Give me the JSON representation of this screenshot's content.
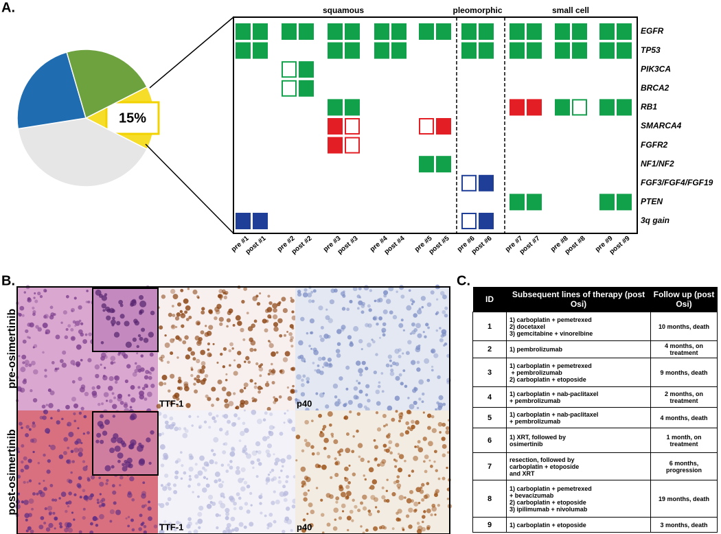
{
  "panel_labels": [
    "A.",
    "B.",
    "C."
  ],
  "chart_data": {
    "type": "pie",
    "values": [
      15,
      40,
      23,
      22
    ],
    "colors": [
      "#f5dd2a",
      "#e6e6e6",
      "#1f6cb0",
      "#6ea23f"
    ],
    "value_labels": [
      "15%",
      null,
      null,
      null
    ]
  },
  "oncoprint": {
    "groups": [
      {
        "name": "squamous",
        "patients": 5
      },
      {
        "name": "pleomorphic",
        "patients": 1
      },
      {
        "name": "small cell",
        "patients": 3
      }
    ],
    "genes": [
      "EGFR",
      "TP53",
      "PIK3CA",
      "BRCA2",
      "RB1",
      "SMARCA4",
      "FGFR2",
      "NF1/NF2",
      "FGF3/FGF4/FGF19",
      "PTEN",
      "3q gain"
    ],
    "samples": [
      "pre #1",
      "post #1",
      "pre #2",
      "post #2",
      "pre #3",
      "post #3",
      "pre #4",
      "post #4",
      "pre #5",
      "post #5",
      "pre #6",
      "post #6",
      "pre #7",
      "post #7",
      "pre #8",
      "post #8",
      "pre #9",
      "post #9"
    ],
    "cells": [
      [
        {
          "color": "#12a14b",
          "filled": true
        },
        {
          "color": "#12a14b",
          "filled": true
        },
        {
          "color": "#12a14b",
          "filled": true
        },
        {
          "color": "#12a14b",
          "filled": true
        },
        {
          "color": "#12a14b",
          "filled": true
        },
        {
          "color": "#12a14b",
          "filled": true
        },
        {
          "color": "#12a14b",
          "filled": true
        },
        {
          "color": "#12a14b",
          "filled": true
        },
        {
          "color": "#12a14b",
          "filled": true
        },
        {
          "color": "#12a14b",
          "filled": true
        },
        {
          "color": "#12a14b",
          "filled": true
        },
        {
          "color": "#12a14b",
          "filled": true
        },
        {
          "color": "#12a14b",
          "filled": true
        },
        {
          "color": "#12a14b",
          "filled": true
        },
        {
          "color": "#12a14b",
          "filled": true
        },
        {
          "color": "#12a14b",
          "filled": true
        },
        {
          "color": "#12a14b",
          "filled": true
        },
        {
          "color": "#12a14b",
          "filled": true
        }
      ],
      [
        {
          "color": "#12a14b",
          "filled": true
        },
        {
          "color": "#12a14b",
          "filled": true
        },
        null,
        null,
        {
          "color": "#12a14b",
          "filled": true
        },
        {
          "color": "#12a14b",
          "filled": true
        },
        {
          "color": "#12a14b",
          "filled": true
        },
        {
          "color": "#12a14b",
          "filled": true
        },
        null,
        null,
        {
          "color": "#12a14b",
          "filled": true
        },
        {
          "color": "#12a14b",
          "filled": true
        },
        {
          "color": "#12a14b",
          "filled": true
        },
        {
          "color": "#12a14b",
          "filled": true
        },
        {
          "color": "#12a14b",
          "filled": true
        },
        {
          "color": "#12a14b",
          "filled": true
        },
        {
          "color": "#12a14b",
          "filled": true
        },
        {
          "color": "#12a14b",
          "filled": true
        }
      ],
      [
        null,
        null,
        {
          "color": "#12a14b",
          "filled": false
        },
        {
          "color": "#12a14b",
          "filled": true
        },
        null,
        null,
        null,
        null,
        null,
        null,
        null,
        null,
        null,
        null,
        null,
        null,
        null,
        null
      ],
      [
        null,
        null,
        {
          "color": "#12a14b",
          "filled": false
        },
        {
          "color": "#12a14b",
          "filled": true
        },
        null,
        null,
        null,
        null,
        null,
        null,
        null,
        null,
        null,
        null,
        null,
        null,
        null,
        null
      ],
      [
        null,
        null,
        null,
        null,
        {
          "color": "#12a14b",
          "filled": true
        },
        {
          "color": "#12a14b",
          "filled": true
        },
        null,
        null,
        null,
        null,
        null,
        null,
        {
          "color": "#e31e24",
          "filled": true
        },
        {
          "color": "#e31e24",
          "filled": true
        },
        {
          "color": "#12a14b",
          "filled": true
        },
        {
          "color": "#12a14b",
          "filled": false
        },
        {
          "color": "#12a14b",
          "filled": true
        },
        {
          "color": "#12a14b",
          "filled": true
        }
      ],
      [
        null,
        null,
        null,
        null,
        {
          "color": "#e31e24",
          "filled": true
        },
        {
          "color": "#e31e24",
          "filled": false
        },
        null,
        null,
        {
          "color": "#e31e24",
          "filled": false
        },
        {
          "color": "#e31e24",
          "filled": true
        },
        null,
        null,
        null,
        null,
        null,
        null,
        null,
        null
      ],
      [
        null,
        null,
        null,
        null,
        {
          "color": "#e31e24",
          "filled": true
        },
        {
          "color": "#e31e24",
          "filled": false
        },
        null,
        null,
        null,
        null,
        null,
        null,
        null,
        null,
        null,
        null,
        null,
        null
      ],
      [
        null,
        null,
        null,
        null,
        null,
        null,
        null,
        null,
        {
          "color": "#12a14b",
          "filled": true
        },
        {
          "color": "#12a14b",
          "filled": true
        },
        null,
        null,
        null,
        null,
        null,
        null,
        null,
        null
      ],
      [
        null,
        null,
        null,
        null,
        null,
        null,
        null,
        null,
        null,
        null,
        {
          "color": "#1f3e97",
          "filled": false
        },
        {
          "color": "#1f3e97",
          "filled": true
        },
        null,
        null,
        null,
        null,
        null,
        null
      ],
      [
        null,
        null,
        null,
        null,
        null,
        null,
        null,
        null,
        null,
        null,
        null,
        null,
        {
          "color": "#12a14b",
          "filled": true
        },
        {
          "color": "#12a14b",
          "filled": true
        },
        null,
        null,
        {
          "color": "#12a14b",
          "filled": true
        },
        {
          "color": "#12a14b",
          "filled": true
        }
      ],
      [
        {
          "color": "#1f3e97",
          "filled": true
        },
        {
          "color": "#1f3e97",
          "filled": true
        },
        null,
        null,
        null,
        null,
        null,
        null,
        null,
        null,
        {
          "color": "#1f3e97",
          "filled": false
        },
        {
          "color": "#1f3e97",
          "filled": true
        },
        null,
        null,
        null,
        null,
        null,
        null
      ]
    ]
  },
  "histology": {
    "rows": [
      "pre-osimertinib",
      "post-osimertinib"
    ],
    "stains": [
      "TTF-1",
      "p40"
    ]
  },
  "table": {
    "header": [
      "ID",
      "Subsequent lines of therapy (post Osi)",
      "Follow up (post Osi)"
    ],
    "rows": [
      [
        "1",
        [
          "1) carboplatin + pemetrexed",
          "2) docetaxel",
          "3) gemcitabine + vinorelbine"
        ],
        "10 months, death"
      ],
      [
        "2",
        [
          "1) pembrolizumab"
        ],
        "4 months, on treatment"
      ],
      [
        "3",
        [
          "1) carboplatin + pemetrexed",
          " + pembrolizumab",
          "2) carboplatin + etoposide"
        ],
        "9 months, death"
      ],
      [
        "4",
        [
          "1) carboplatin + nab-paclitaxel",
          "+ pembrolizumab"
        ],
        "2 months, on treatment"
      ],
      [
        "5",
        [
          "1) carboplatin + nab-paclitaxel",
          "+ pembrolizumab"
        ],
        "4 months, death"
      ],
      [
        "6",
        [
          "1) XRT, followed by",
          "osimertinib"
        ],
        "1 month, on treatment"
      ],
      [
        "7",
        [
          "resection, followed by",
          "carboplatin + etoposide",
          "and XRT"
        ],
        "6 months, progression"
      ],
      [
        "8",
        [
          "1) carboplatin + pemetrexed",
          "+ bevacizumab",
          "2) carboplatin + etoposide",
          "3) ipilimumab + nivolumab"
        ],
        "19 months, death"
      ],
      [
        "9",
        [
          "1) carboplatin + etoposide"
        ],
        "3 months, death"
      ]
    ]
  }
}
